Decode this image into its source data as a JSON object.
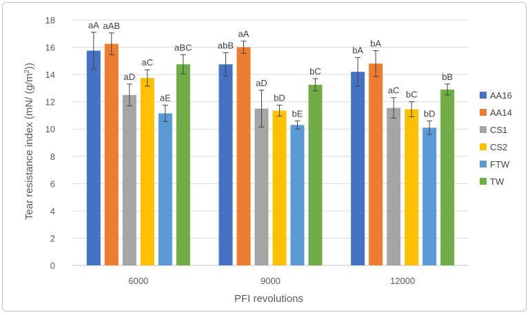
{
  "chart_data": {
    "type": "bar",
    "title": "",
    "xlabel": "PFI revolutions",
    "ylabel_parts": [
      "Tear resistance index (mN/ (g/m",
      "2",
      "))"
    ],
    "ylim": [
      0,
      18
    ],
    "yticks": [
      0,
      2,
      4,
      6,
      8,
      10,
      12,
      14,
      16,
      18
    ],
    "grid": true,
    "legend_position": "right",
    "categories": [
      "6000",
      "9000",
      "12000"
    ],
    "series": [
      {
        "name": "AA16",
        "color": "#4472c4",
        "values": [
          15.75,
          14.75,
          14.2
        ],
        "errors": [
          1.35,
          0.85,
          1.05
        ],
        "labels": [
          "aA",
          "abB",
          "bA"
        ]
      },
      {
        "name": "AA14",
        "color": "#ed7d31",
        "values": [
          16.25,
          16.0,
          14.8
        ],
        "errors": [
          0.8,
          0.45,
          0.95
        ],
        "labels": [
          "aAB",
          "aA",
          "bA"
        ]
      },
      {
        "name": "CS1",
        "color": "#a5a5a5",
        "values": [
          12.5,
          11.5,
          11.55
        ],
        "errors": [
          0.8,
          1.35,
          0.75
        ],
        "labels": [
          "aD",
          "aD",
          "aC"
        ]
      },
      {
        "name": "CS2",
        "color": "#ffc000",
        "values": [
          13.75,
          11.35,
          11.45
        ],
        "errors": [
          0.6,
          0.4,
          0.55
        ],
        "labels": [
          "aC",
          "bD",
          "bC"
        ]
      },
      {
        "name": "FTW",
        "color": "#5b9bd5",
        "values": [
          11.15,
          10.3,
          10.1
        ],
        "errors": [
          0.6,
          0.3,
          0.5
        ],
        "labels": [
          "aE",
          "bE",
          "bD"
        ]
      },
      {
        "name": "TW",
        "color": "#70ad47",
        "values": [
          14.75,
          13.25,
          12.9
        ],
        "errors": [
          0.7,
          0.45,
          0.4
        ],
        "labels": [
          "aBC",
          "bC",
          "bB"
        ]
      }
    ]
  }
}
